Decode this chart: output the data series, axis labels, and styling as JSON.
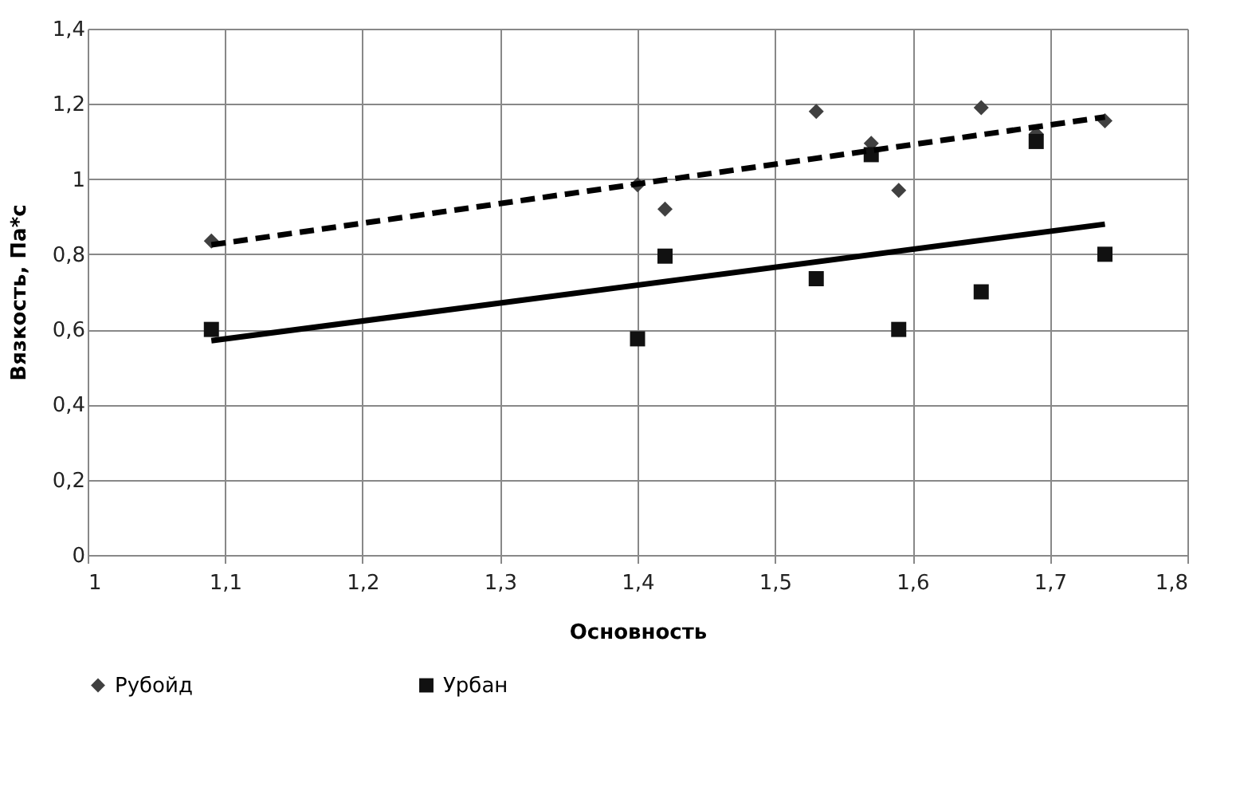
{
  "chart_data": {
    "type": "scatter",
    "xlabel": "Основность",
    "ylabel": "Вязкость, Па*с",
    "legend": "bottom",
    "grid": true,
    "xlim": [
      1,
      1.8
    ],
    "xticks": [
      1,
      {
        "value": 1.1,
        "label": "1,1"
      },
      {
        "value": 1.2,
        "label": "1,2"
      },
      {
        "value": 1.3,
        "label": "1,3"
      },
      {
        "value": 1.4,
        "label": "1,4"
      },
      {
        "value": 1.5,
        "label": "1,5"
      },
      {
        "value": 1.6,
        "label": "1,6"
      },
      {
        "value": 1.7,
        "label": "1,7"
      },
      {
        "value": 1.8,
        "label": "1,8"
      }
    ],
    "ylim": [
      0,
      1.4
    ],
    "yticks": [
      0,
      {
        "value": 0.2,
        "label": "0,2"
      },
      {
        "value": 0.4,
        "label": "0,4"
      },
      {
        "value": 0.6,
        "label": "0,6"
      },
      {
        "value": 0.8,
        "label": "0,8"
      },
      1,
      {
        "value": 1.2,
        "label": "1,2"
      },
      {
        "value": 1.4,
        "label": "1,4"
      }
    ],
    "series": [
      {
        "name": "Рубойд",
        "marker": "diamond",
        "color": "#404040",
        "x": [
          1.09,
          1.4,
          1.42,
          1.53,
          1.57,
          1.59,
          1.65,
          1.69,
          1.74
        ],
        "values": [
          0.835,
          0.985,
          0.92,
          1.18,
          1.095,
          0.97,
          1.19,
          1.12,
          1.155
        ]
      },
      {
        "name": "Урбан",
        "marker": "square",
        "color": "#111111",
        "x": [
          1.09,
          1.4,
          1.42,
          1.53,
          1.57,
          1.59,
          1.65,
          1.69,
          1.74
        ],
        "values": [
          0.6,
          0.575,
          0.795,
          0.735,
          1.065,
          0.6,
          0.7,
          1.1,
          0.8
        ]
      },
      {
        "type": "line",
        "line_style": "dashed",
        "color": "#000000",
        "x": [
          1.09,
          1.74
        ],
        "values": [
          0.825,
          1.165
        ]
      },
      {
        "type": "line",
        "line_style": "solid",
        "color": "#000000",
        "x": [
          1.09,
          1.74
        ],
        "values": [
          0.57,
          0.88
        ]
      }
    ]
  }
}
